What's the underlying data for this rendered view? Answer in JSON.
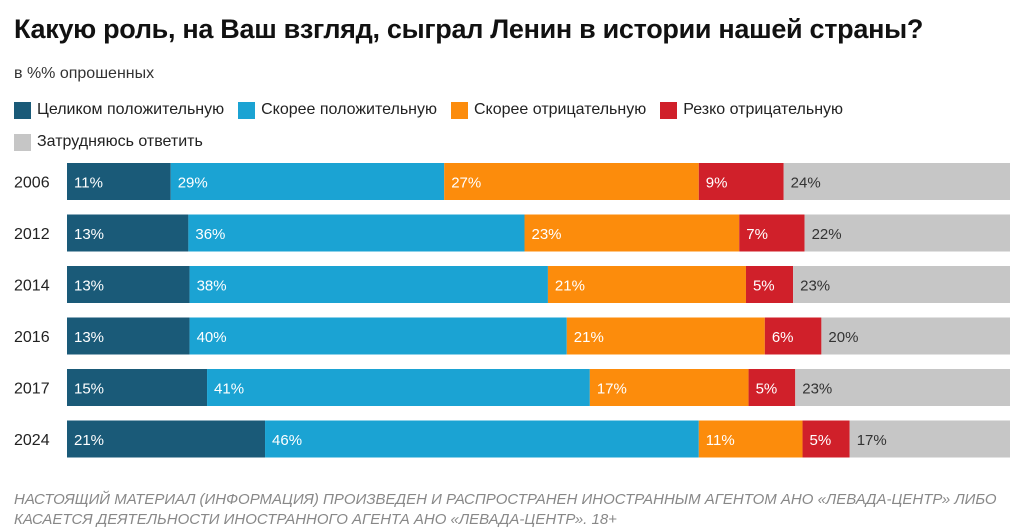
{
  "title": "Какую роль, на Ваш взгляд, сыграл Ленин в истории нашей страны?",
  "subtitle": "в %% опрошенных",
  "footer": "НАСТОЯЩИЙ МАТЕРИАЛ (ИНФОРМАЦИЯ) ПРОИЗВЕДЕН И РАСПРОСТРАНЕН ИНОСТРАННЫМ АГЕНТОМ АНО «ЛЕВАДА-ЦЕНТР» ЛИБО КАСАЕТСЯ ДЕЯТЕЛЬНОСТИ ИНОСТРАННОГО АГЕНТА АНО «ЛЕВАДА-ЦЕНТР». 18+",
  "chart_data": {
    "type": "bar",
    "orientation": "horizontal",
    "stacked": "100%",
    "categories": [
      "2006",
      "2012",
      "2014",
      "2016",
      "2017",
      "2024"
    ],
    "series": [
      {
        "name": "Целиком положительную",
        "color": "#1a5a78",
        "values": [
          11,
          13,
          13,
          13,
          15,
          21
        ]
      },
      {
        "name": "Скорее положительную",
        "color": "#1ba3d3",
        "values": [
          29,
          36,
          38,
          40,
          41,
          46
        ]
      },
      {
        "name": "Скорее отрицательную",
        "color": "#fc8c0c",
        "values": [
          27,
          23,
          21,
          21,
          17,
          11
        ]
      },
      {
        "name": "Резко отрицательную",
        "color": "#d0202a",
        "values": [
          9,
          7,
          5,
          6,
          5,
          5
        ]
      },
      {
        "name": "Затрудняюсь ответить",
        "color": "#c6c6c6",
        "values": [
          24,
          22,
          23,
          20,
          23,
          17
        ]
      }
    ],
    "data_label_suffix": "%",
    "legend_position": "top-left",
    "grid": false
  }
}
